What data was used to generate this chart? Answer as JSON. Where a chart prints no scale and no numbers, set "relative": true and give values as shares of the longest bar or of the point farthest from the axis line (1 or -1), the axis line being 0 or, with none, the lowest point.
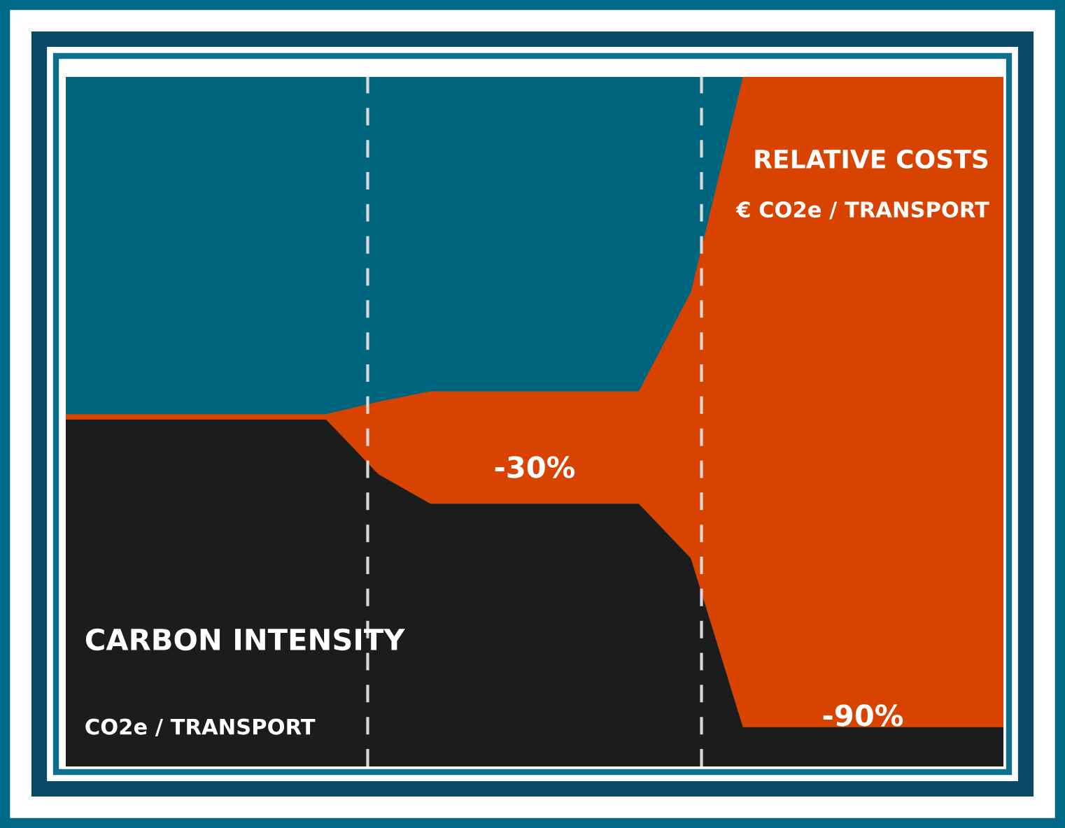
{
  "chart_data": {
    "type": "area",
    "stacked": true,
    "relative": true,
    "categories": [
      null,
      null,
      null,
      null,
      null,
      null,
      null,
      null,
      null,
      null,
      null,
      null,
      null,
      null,
      null,
      null,
      null,
      null,
      null
    ],
    "series": [
      {
        "name": "CARBON INTENSITY",
        "color": "#1c1c1c",
        "values": [
          0.503,
          0.503,
          0.503,
          0.503,
          0.503,
          0.503,
          0.424,
          0.381,
          0.381,
          0.381,
          0.381,
          0.381,
          0.302,
          0.057,
          0.057,
          0.057,
          0.057,
          0.057,
          0.057
        ]
      },
      {
        "name": "RELATIVE COSTS",
        "color": "#d94300",
        "values": [
          0.008,
          0.008,
          0.008,
          0.008,
          0.008,
          0.008,
          0.105,
          0.163,
          0.163,
          0.163,
          0.163,
          0.163,
          0.386,
          0.943,
          0.943,
          0.943,
          0.943,
          0.943,
          0.943
        ]
      }
    ],
    "annotations": [
      "CO2e / TRANSPORT",
      "€ CO2e / TRANSPORT",
      "-30%",
      "-90%"
    ]
  }
}
